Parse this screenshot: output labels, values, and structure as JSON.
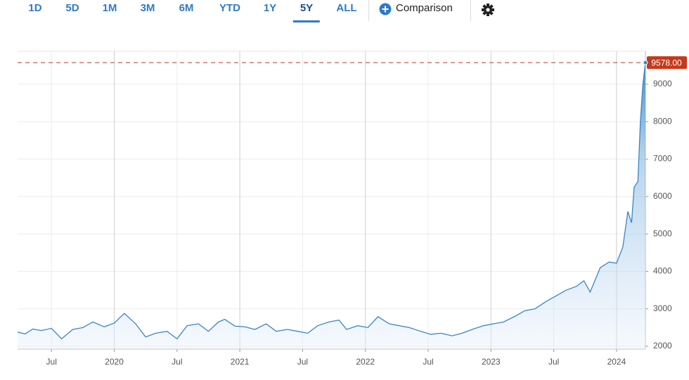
{
  "toolbar": {
    "ranges": [
      "1D",
      "5D",
      "1M",
      "3M",
      "6M",
      "YTD",
      "1Y",
      "5Y",
      "ALL"
    ],
    "selected": "5Y",
    "comparison": "Comparison"
  },
  "chart_data": {
    "type": "area",
    "x": [
      2019.23,
      2019.29,
      2019.35,
      2019.42,
      2019.5,
      2019.58,
      2019.67,
      2019.75,
      2019.83,
      2019.92,
      2020.0,
      2020.08,
      2020.17,
      2020.25,
      2020.33,
      2020.42,
      2020.5,
      2020.58,
      2020.67,
      2020.75,
      2020.83,
      2020.88,
      2020.96,
      2021.04,
      2021.12,
      2021.21,
      2021.29,
      2021.38,
      2021.46,
      2021.54,
      2021.62,
      2021.71,
      2021.79,
      2021.85,
      2021.94,
      2022.02,
      2022.1,
      2022.19,
      2022.27,
      2022.35,
      2022.44,
      2022.52,
      2022.6,
      2022.69,
      2022.77,
      2022.85,
      2022.94,
      2023.02,
      2023.1,
      2023.19,
      2023.27,
      2023.35,
      2023.44,
      2023.52,
      2023.6,
      2023.68,
      2023.74,
      2023.79,
      2023.87,
      2023.94,
      2024.0,
      2024.05,
      2024.09,
      2024.12,
      2024.14,
      2024.17,
      2024.19,
      2024.21,
      2024.23
    ],
    "series": [
      {
        "color": "#3a86c8",
        "values": [
          2380,
          2330,
          2460,
          2420,
          2480,
          2200,
          2450,
          2500,
          2650,
          2520,
          2620,
          2880,
          2600,
          2250,
          2350,
          2400,
          2200,
          2550,
          2600,
          2400,
          2650,
          2720,
          2540,
          2520,
          2450,
          2600,
          2400,
          2450,
          2400,
          2350,
          2550,
          2650,
          2700,
          2450,
          2550,
          2500,
          2790,
          2600,
          2550,
          2500,
          2400,
          2320,
          2350,
          2280,
          2350,
          2450,
          2550,
          2600,
          2650,
          2800,
          2950,
          3000,
          3200,
          3350,
          3500,
          3600,
          3750,
          3450,
          4100,
          4250,
          4220,
          4650,
          5600,
          5300,
          6250,
          6400,
          8000,
          9000,
          9578
        ]
      }
    ],
    "xlim": [
      2019.23,
      2024.23
    ],
    "xticks": [
      {
        "value": 2019.5,
        "label": "Jul"
      },
      2020,
      {
        "value": 2020.5,
        "label": "Jul"
      },
      2021,
      {
        "value": 2021.5,
        "label": "Jul"
      },
      2022,
      {
        "value": 2022.5,
        "label": "Jul"
      },
      2023,
      {
        "value": 2023.5,
        "label": "Jul"
      },
      2024
    ],
    "ylim": [
      1925,
      9880
    ],
    "yticks": [
      2000,
      3000,
      4000,
      5000,
      6000,
      7000,
      8000,
      9000
    ],
    "last_price": {
      "value": 9578,
      "label": "9578.00",
      "color": "#c8381c"
    },
    "grid": true
  }
}
